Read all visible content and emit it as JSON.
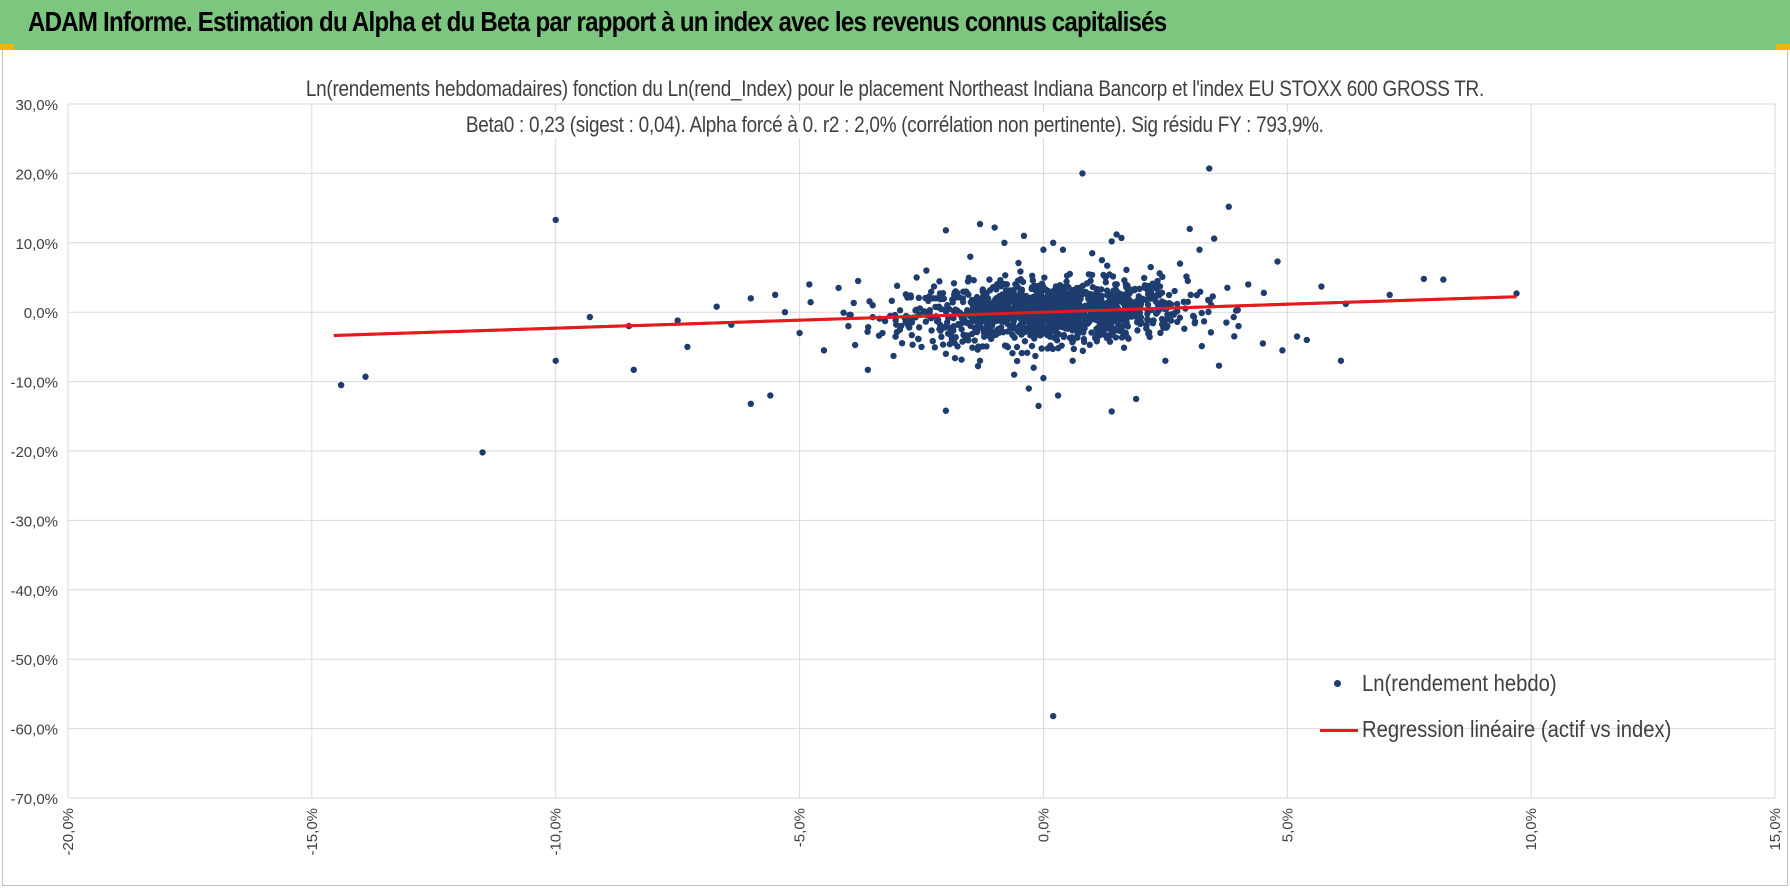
{
  "header": {
    "title": "ADAM Informe. Estimation du Alpha et du Beta par rapport à un index avec les revenus connus capitalisés"
  },
  "colors": {
    "header_bg": "#7dc67f",
    "points": "#1f3c6e",
    "regression": "#e41a1c",
    "grid": "#d9d9d9",
    "text": "#404040"
  },
  "chart_data": {
    "type": "scatter",
    "title": "Ln(rendements hebdomadaires) fonction du Ln(rend_Index) pour le placement Northeast Indiana Bancorp et l'index EU STOXX 600 GROSS TR.",
    "subtitle": "Beta0 : 0,23  (sigest : 0,04). Alpha forcé à 0. r2 : 2,0% (corrélation non pertinente). Sig résidu FY : 793,9%.",
    "xlim": [
      -0.2,
      0.15
    ],
    "ylim": [
      -0.7,
      0.3
    ],
    "x_ticks": [
      -0.2,
      -0.15,
      -0.1,
      -0.05,
      0.0,
      0.05,
      0.1,
      0.15
    ],
    "x_tick_labels": [
      "-20,0%",
      "-15,0%",
      "-10,0%",
      "-5,0%",
      "0,0%",
      "5,0%",
      "10,0%",
      "15,0%"
    ],
    "y_ticks": [
      0.3,
      0.2,
      0.1,
      0.0,
      -0.1,
      -0.2,
      -0.3,
      -0.4,
      -0.5,
      -0.6,
      -0.7
    ],
    "y_tick_labels": [
      "30,0%",
      "20,0%",
      "10,0%",
      "0,0%",
      "-10,0%",
      "-20,0%",
      "-30,0%",
      "-40,0%",
      "-50,0%",
      "-60,0%",
      "-70,0%"
    ],
    "grid": true,
    "legend_position": "bottom-right",
    "series": [
      {
        "name": "Ln(rendement hebdo)",
        "kind": "scatter",
        "points": [
          [
            -0.144,
            -0.105
          ],
          [
            -0.139,
            -0.093
          ],
          [
            -0.115,
            -0.202
          ],
          [
            -0.1,
            0.133
          ],
          [
            -0.1,
            -0.07
          ],
          [
            -0.093,
            -0.007
          ],
          [
            -0.085,
            -0.02
          ],
          [
            -0.084,
            -0.083
          ],
          [
            -0.075,
            -0.012
          ],
          [
            -0.073,
            -0.05
          ],
          [
            -0.067,
            0.008
          ],
          [
            -0.064,
            -0.018
          ],
          [
            -0.06,
            0.02
          ],
          [
            -0.06,
            -0.132
          ],
          [
            -0.056,
            -0.12
          ],
          [
            -0.055,
            0.025
          ],
          [
            -0.053,
            0.0
          ],
          [
            -0.05,
            -0.03
          ],
          [
            -0.048,
            0.04
          ],
          [
            -0.045,
            -0.055
          ],
          [
            -0.042,
            0.035
          ],
          [
            -0.04,
            -0.02
          ],
          [
            -0.038,
            0.045
          ],
          [
            -0.036,
            -0.083
          ],
          [
            -0.035,
            0.01
          ],
          [
            -0.033,
            -0.03
          ],
          [
            -0.03,
            0.038
          ],
          [
            -0.028,
            -0.01
          ],
          [
            -0.026,
            0.05
          ],
          [
            -0.025,
            -0.05
          ],
          [
            -0.024,
            0.06
          ],
          [
            -0.022,
            0.02
          ],
          [
            -0.02,
            0.118
          ],
          [
            -0.02,
            -0.06
          ],
          [
            -0.018,
            0.03
          ],
          [
            -0.02,
            -0.142
          ],
          [
            -0.015,
            0.08
          ],
          [
            -0.013,
            -0.07
          ],
          [
            -0.013,
            0.127
          ],
          [
            -0.01,
            0.122
          ],
          [
            -0.008,
            0.1
          ],
          [
            -0.006,
            -0.09
          ],
          [
            -0.004,
            0.11
          ],
          [
            -0.002,
            -0.08
          ],
          [
            0.0,
            0.09
          ],
          [
            -0.003,
            -0.11
          ],
          [
            -0.001,
            -0.135
          ],
          [
            0.0,
            -0.095
          ],
          [
            0.002,
            0.1
          ],
          [
            0.003,
            -0.12
          ],
          [
            0.004,
            0.09
          ],
          [
            0.006,
            -0.07
          ],
          [
            0.008,
            0.2
          ],
          [
            0.01,
            0.085
          ],
          [
            0.012,
            0.075
          ],
          [
            0.014,
            0.102
          ],
          [
            0.015,
            0.112
          ],
          [
            0.016,
            0.107
          ],
          [
            0.014,
            -0.143
          ],
          [
            0.019,
            -0.125
          ],
          [
            0.022,
            0.065
          ],
          [
            0.025,
            -0.07
          ],
          [
            0.028,
            0.07
          ],
          [
            0.03,
            0.12
          ],
          [
            0.032,
            0.09
          ],
          [
            0.034,
            0.207
          ],
          [
            0.035,
            0.106
          ],
          [
            0.036,
            -0.077
          ],
          [
            0.038,
            0.152
          ],
          [
            0.04,
            -0.02
          ],
          [
            0.042,
            0.04
          ],
          [
            0.045,
            -0.045
          ],
          [
            0.048,
            0.073
          ],
          [
            0.049,
            -0.055
          ],
          [
            0.052,
            -0.035
          ],
          [
            0.054,
            -0.04
          ],
          [
            0.057,
            0.037
          ],
          [
            0.061,
            -0.07
          ],
          [
            0.062,
            0.012
          ],
          [
            0.071,
            0.025
          ],
          [
            0.078,
            0.048
          ],
          [
            0.082,
            0.047
          ],
          [
            0.097,
            0.027
          ],
          [
            0.002,
            -0.582
          ]
        ]
      },
      {
        "name": "Regression linéaire (actif vs index)",
        "kind": "line",
        "points": [
          [
            -0.1455,
            -0.0335
          ],
          [
            0.097,
            0.0223
          ]
        ]
      }
    ]
  },
  "legend": {
    "items": [
      {
        "label": "Ln(rendement hebdo)",
        "marker": "dot"
      },
      {
        "label": "Regression linéaire (actif vs index)",
        "marker": "line"
      }
    ]
  }
}
